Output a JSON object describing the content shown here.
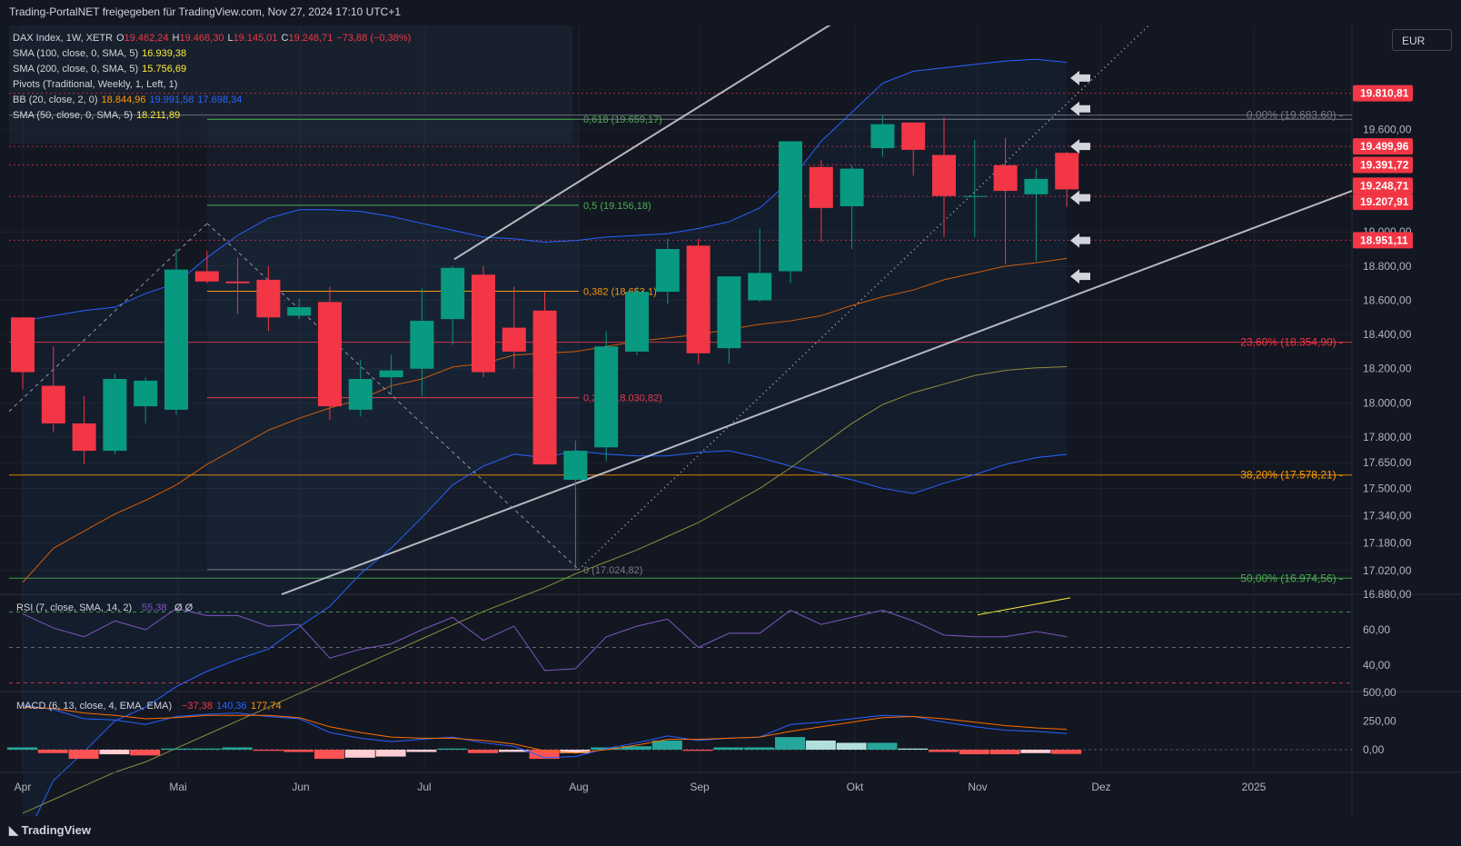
{
  "header": {
    "title": "Trading-PortalNET freigegeben für TradingView.com, Nov 27, 2024 17:10 UTC+1"
  },
  "currency": "EUR",
  "footer": {
    "brand": "TradingView"
  },
  "legend": [
    {
      "text": "DAX Index, 1W, XETR",
      "values": [
        {
          "t": "O",
          "c": "#d1d4dc"
        },
        {
          "t": "19.462,24",
          "c": "#f23645"
        },
        {
          "t": "H",
          "c": "#d1d4dc"
        },
        {
          "t": "19.468,30",
          "c": "#f23645"
        },
        {
          "t": "L",
          "c": "#d1d4dc"
        },
        {
          "t": "19.145,01",
          "c": "#f23645"
        },
        {
          "t": "C",
          "c": "#d1d4dc"
        },
        {
          "t": "19.248,71",
          "c": "#f23645"
        },
        {
          "t": "−73,88 (−0,38%)",
          "c": "#f23645"
        }
      ]
    },
    {
      "text": "SMA (100, close, 0, SMA, 5)",
      "values": [
        {
          "t": "16.939,38",
          "c": "#ffeb3b"
        }
      ]
    },
    {
      "text": "SMA (200, close, 0, SMA, 5)",
      "values": [
        {
          "t": "15.756,69",
          "c": "#ffeb3b"
        }
      ]
    },
    {
      "text": "Pivots (Traditional, Weekly, 1, Left, 1)",
      "values": []
    },
    {
      "text": "BB (20, close, 2, 0)",
      "values": [
        {
          "t": "18.844,96",
          "c": "#ff9800"
        },
        {
          "t": "19.991,58",
          "c": "#2962ff"
        },
        {
          "t": "17.698,34",
          "c": "#2962ff"
        }
      ]
    },
    {
      "text": "SMA (50, close, 0, SMA, 5)",
      "values": [
        {
          "t": "18.211,89",
          "c": "#ffeb3b"
        }
      ]
    }
  ],
  "chart_data": {
    "type": "candlestick",
    "title": "DAX Index, 1W, XETR",
    "x_ticks": [
      "Apr",
      "Mai",
      "Jun",
      "Jul",
      "Aug",
      "Sep",
      "Okt",
      "Nov",
      "Dez",
      "2025"
    ],
    "y_ticks": [
      "19.600,00",
      "19.000,00",
      "18.800,00",
      "18.600,00",
      "18.400,00",
      "18.200,00",
      "18.000,00",
      "17.800,00",
      "17.650,00",
      "17.500,00",
      "17.340,00",
      "17.180,00",
      "17.020,00",
      "16.880,00"
    ],
    "ohlc": [
      [
        18500,
        18500,
        18080,
        18180
      ],
      [
        18100,
        18330,
        17830,
        17880
      ],
      [
        17880,
        18040,
        17640,
        17720
      ],
      [
        17720,
        18170,
        17700,
        18140
      ],
      [
        17980,
        18150,
        17880,
        18130
      ],
      [
        17960,
        18900,
        17930,
        18780
      ],
      [
        18770,
        18890,
        18700,
        18710
      ],
      [
        18710,
        18850,
        18520,
        18700
      ],
      [
        18720,
        18800,
        18420,
        18500
      ],
      [
        18510,
        18610,
        18490,
        18560
      ],
      [
        18590,
        18680,
        17900,
        17980
      ],
      [
        17960,
        18250,
        17920,
        18140
      ],
      [
        18150,
        18280,
        18050,
        18190
      ],
      [
        18200,
        18670,
        18040,
        18480
      ],
      [
        18490,
        18800,
        18340,
        18790
      ],
      [
        18750,
        18800,
        18150,
        18180
      ],
      [
        18440,
        18680,
        18200,
        18300
      ],
      [
        18540,
        18650,
        17650,
        17640
      ],
      [
        17550,
        17780,
        17030,
        17720
      ],
      [
        17740,
        18420,
        17660,
        18330
      ],
      [
        18300,
        18680,
        18280,
        18650
      ],
      [
        18650,
        18960,
        18580,
        18900
      ],
      [
        18920,
        18960,
        18230,
        18290
      ],
      [
        18320,
        18730,
        18230,
        18740
      ],
      [
        18600,
        19020,
        18590,
        18760
      ],
      [
        18770,
        19530,
        18700,
        19530
      ],
      [
        19380,
        19420,
        18940,
        19140
      ],
      [
        19150,
        19390,
        18900,
        19370
      ],
      [
        19490,
        19680,
        19440,
        19630
      ],
      [
        19640,
        19640,
        19330,
        19480
      ],
      [
        19450,
        19670,
        18970,
        19210
      ],
      [
        19210,
        19540,
        18970,
        19210
      ],
      [
        19390,
        19550,
        18810,
        19240
      ],
      [
        19220,
        19370,
        18830,
        19310
      ],
      [
        19462.24,
        19468.3,
        19145.01,
        19248.71
      ]
    ],
    "fib_retracement_left": [
      {
        "level": "0,618",
        "value": "19.659,17"
      },
      {
        "level": "0,5",
        "value": "19.156,18"
      },
      {
        "level": "0,382",
        "value": "18.653,1"
      },
      {
        "level": "0,236",
        "value": "18.030,82"
      },
      {
        "level": "0",
        "value": "17.024,82"
      }
    ],
    "fib_retracement_right": [
      {
        "level": "0,00%",
        "value": "19.683,60"
      },
      {
        "level": "23,60%",
        "value": "18.354,90"
      },
      {
        "level": "38,20%",
        "value": "17.578,21"
      },
      {
        "level": "50,00%",
        "value": "16.974,56"
      }
    ],
    "price_labels": [
      {
        "text": "19.810,81",
        "color": "#f23645"
      },
      {
        "text": "19.499,96",
        "color": "#f23645"
      },
      {
        "text": "19.391,72",
        "color": "#f23645"
      },
      {
        "text": "19.248,71",
        "color": "#f23645"
      },
      {
        "text": "19.207,91",
        "color": "#f23645"
      },
      {
        "text": "18.951,11",
        "color": "#f23645"
      }
    ],
    "rsi": {
      "label": "RSI (7, close, SMA, 14, 2)",
      "value": "55,38",
      "value_extra": "Ø Ø",
      "y_ticks": [
        "60,00",
        "40,00"
      ],
      "values": [
        69,
        61,
        56,
        65,
        60,
        72,
        68,
        68,
        62,
        63,
        44,
        49,
        52,
        60,
        67,
        54,
        62,
        37,
        38,
        56,
        62,
        66,
        50,
        58,
        58,
        71,
        63,
        67,
        71,
        65,
        57,
        56,
        56,
        59,
        56
      ]
    },
    "macd": {
      "label": "MACD (6, 13, close, 4, EMA, EMA)",
      "values_text": [
        {
          "t": "−37,38",
          "c": "#f23645"
        },
        {
          "t": "140,36",
          "c": "#2962ff"
        },
        {
          "t": "177,74",
          "c": "#ff9800"
        }
      ],
      "y_ticks": [
        "500,00",
        "250,00",
        "0,00"
      ],
      "macd": [
        390,
        350,
        270,
        260,
        220,
        290,
        310,
        320,
        290,
        270,
        150,
        100,
        70,
        90,
        110,
        60,
        30,
        -70,
        -60,
        10,
        60,
        120,
        80,
        100,
        110,
        220,
        240,
        270,
        300,
        290,
        240,
        200,
        170,
        160,
        140
      ],
      "signal": [
        370,
        360,
        320,
        300,
        270,
        280,
        300,
        300,
        300,
        280,
        200,
        150,
        110,
        100,
        100,
        80,
        50,
        -10,
        -30,
        0,
        40,
        90,
        90,
        100,
        110,
        160,
        200,
        240,
        280,
        290,
        270,
        240,
        210,
        190,
        178
      ],
      "hist": [
        20,
        -30,
        -80,
        -40,
        -50,
        10,
        10,
        20,
        -10,
        -20,
        -80,
        -70,
        -60,
        -20,
        10,
        -30,
        -20,
        -80,
        -30,
        20,
        30,
        80,
        -10,
        20,
        20,
        110,
        80,
        60,
        60,
        10,
        -20,
        -40,
        -40,
        -30,
        -37
      ]
    }
  }
}
